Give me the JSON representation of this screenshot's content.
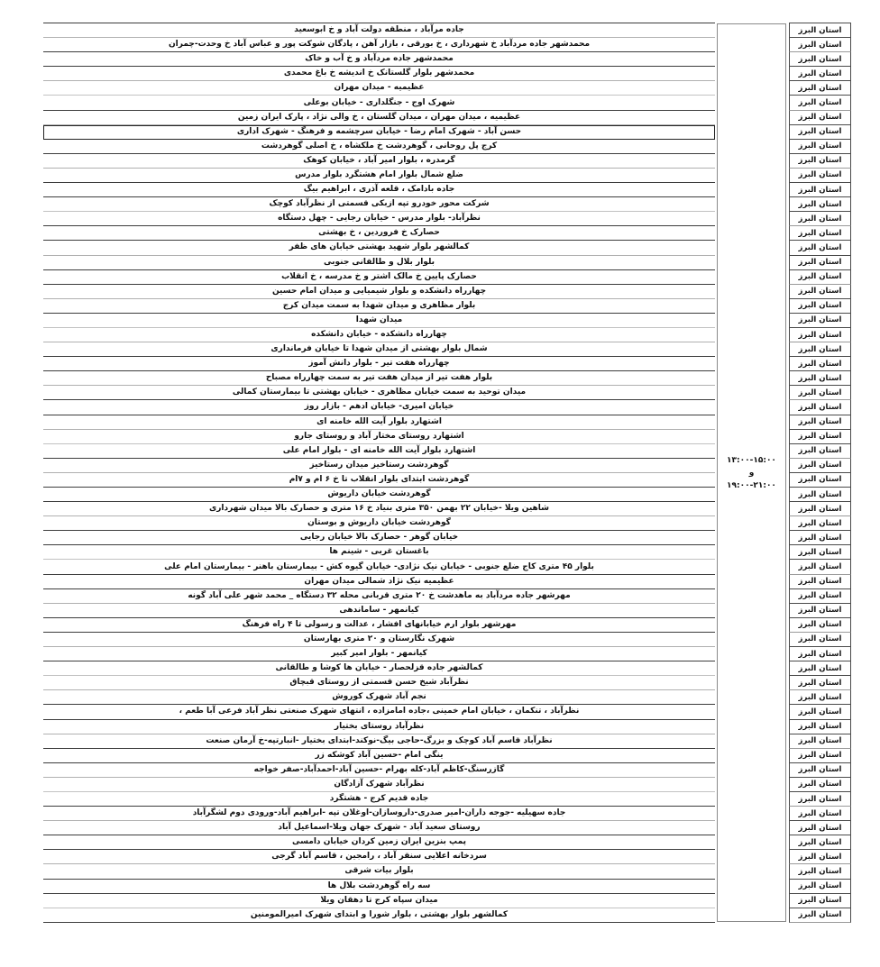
{
  "province_label": "استان البرز",
  "schedule": {
    "time_range_1": "۱۳:۰۰-۱۵:۰۰",
    "conjunction": "و",
    "time_range_2": "۱۹:۰۰-۲۱:۰۰"
  },
  "highlighted_row_index": 7,
  "rows": [
    "جاده مرآباد ، منطقه دولت آباد و خ ابوسعید",
    "محمدشهر جاده مردآباد خ شهرداری ، خ بورقی ، بازار آهن ، پادگان شوکت پور و عباس آباد خ وحدت-چمران",
    "محمدشهر جاده مردآباد و خ آب و خاک",
    "محمدشهر بلوار گلستانک خ اندیشه خ باغ محمدی",
    "عظیمیه - میدان مهران",
    "شهرک اوج - جنگلداری - خیابان بوعلی",
    "عظیمیه ، میدان مهران ، میدان گلستان ، خ والی نژاد ، پارک ایران زمین",
    "حسن آباد - شهرک امام رضا - خیابان سرچشمه و فرهنگ - شهرک اداری",
    "کرج پل روحانی ، گوهردشت خ ملکشاه ، خ اصلی گوهردشت",
    "گرمدره ، بلوار امیر آباد ، خیابان کوهک",
    "ضلع شمال بلوار امام هشتگرد بلوار مدرس",
    "جاده بادامک ، قلعه آذری ، ابراهیم بیگ",
    "شرکت محور خودرو تپه ازبکی قسمتی از نظرآباد کوچک",
    "نظرآباد- بلوار مدرس - خیابان رجایی - چهل دستگاه",
    "حصارک خ فروردین ، خ بهشتی",
    "کمالشهر بلوار شهید بهشتی خیابان های ظفر",
    "بلوار بلال و طالقانی جنوبی",
    "حصارک پایین خ مالک اشتر و خ مدرسه ، خ انقلاب",
    "چهارراه دانشکده و بلوار شیمیایی و میدان امام حسین",
    "بلوار مظاهری و میدان شهدا به سمت میدان کرج",
    "میدان شهدا",
    "چهارراه دانشکده - خیابان دانشکده",
    "شمال بلوار بهشتی از میدان شهدا تا خیابان فرمانداری",
    "چهارراه هفت تیر - بلوار دانش آموز",
    "بلوار هفت تیر از میدان هفت تیر به سمت چهارراه مصباح",
    "میدان توحید به سمت خیابان مظاهری - خیابان بهشتی تا بیمارستان کمالی",
    "خیابان امیری- خیابان ادهم - بازار روز",
    "اشتهارد بلوار آیت الله خامنه ای",
    "اشتهارد روستای مختار آباد و روستای جارو",
    "اشتهارد بلوار آیت الله خامنه ای - بلوار امام علی",
    "گوهردشت رستاخیز میدان رستاخیز",
    "گوهردشت ابتدای بلوار انقلاب تا خ ۶ ام و ۷ام",
    "گوهردشت خیابان داریوش",
    "شاهین ویلا -خیابان ۲۲ بهمن ۳۵۰ متری بنیاد خ ۱۶ متری و حصارک بالا میدان شهرداری",
    "گوهردشت خیابان داریوش و بوستان",
    "خیابان گوهر - حصارک بالا خیابان رجایی",
    "باغستان غربی - شینم ها",
    "بلوار ۴۵ متری کاج ضلع جنوبی - خیابان نیک نژادی- خیابان گیوه کش - بیمارستان باهنر - بیمارستان امام علی",
    "عظیمیه  نیک نژاد شمالی میدان مهران",
    "مهرشهر جاده مردآباد به ماهدشت خ ۲۰ متری قربانی محله ۳۲ دستگاه _ محمد شهر علی آباد گونه",
    "کیانمهر - ساماندهی",
    "مهرشهر بلوار ارم خیابانهای افشار ، عدالت و رسولی تا ۴ راه فرهنگ",
    "شهرک نگارستان و ۲۰ متری بهارستان",
    "کیانمهر - بلوار امیر کبیر",
    "کمالشهر جاده قزلحصار - خیابان ها کوشا و طالقانی",
    "نظرآباد شیخ حسن قسمتی از روستای قبچاق",
    "نجم آباد شهرک کوروش",
    "نظرآباد ، تنکمان ، خیابان امام خمینی ،جاده امامزاده ، انتهای شهرک صنعتی نظر آباد فرعی آبا طعم ،",
    "نظرآباد روستای بختیار",
    "نظرآباد قاسم آباد کوچک و بزرگ-حاجی بیگ-نوکند-ابتدای بختیار -انبارتپه-خ آرمان صنعت",
    "ینگی امام -حسین آباد کوشکه زر",
    "گازرسنگ-کاظم آباد-کله بهرام -حسین آباد-احمدآباد-صفر خواجه",
    "نظرآباد شهرک آزادگان",
    "جاده قدیم کرج - هشتگرد",
    "جاده سهیلیه -جوجه داران-امیر صدری-داروسازان-اوغلان تپه -ابراهیم آباد-ورودی دوم لشگرآباد",
    "روستای سعید آباد  - شهرک جهان ویلا-اسماعیل آباد",
    "پمپ بنزین ایران زمین کردان خیابان دامسی",
    "سردخانه اعلایی سنقر آباد ، رامجین ، قاسم آباد گرجی",
    "بلوار بیات شرقی",
    "سه راه گوهردشت بلال ها",
    "میدان سپاه کرج تا دهقان ویلا",
    "کمالشهر بلوار بهشتی ، بلوار شورا و ابتدای شهرک امیرالمومنین"
  ]
}
